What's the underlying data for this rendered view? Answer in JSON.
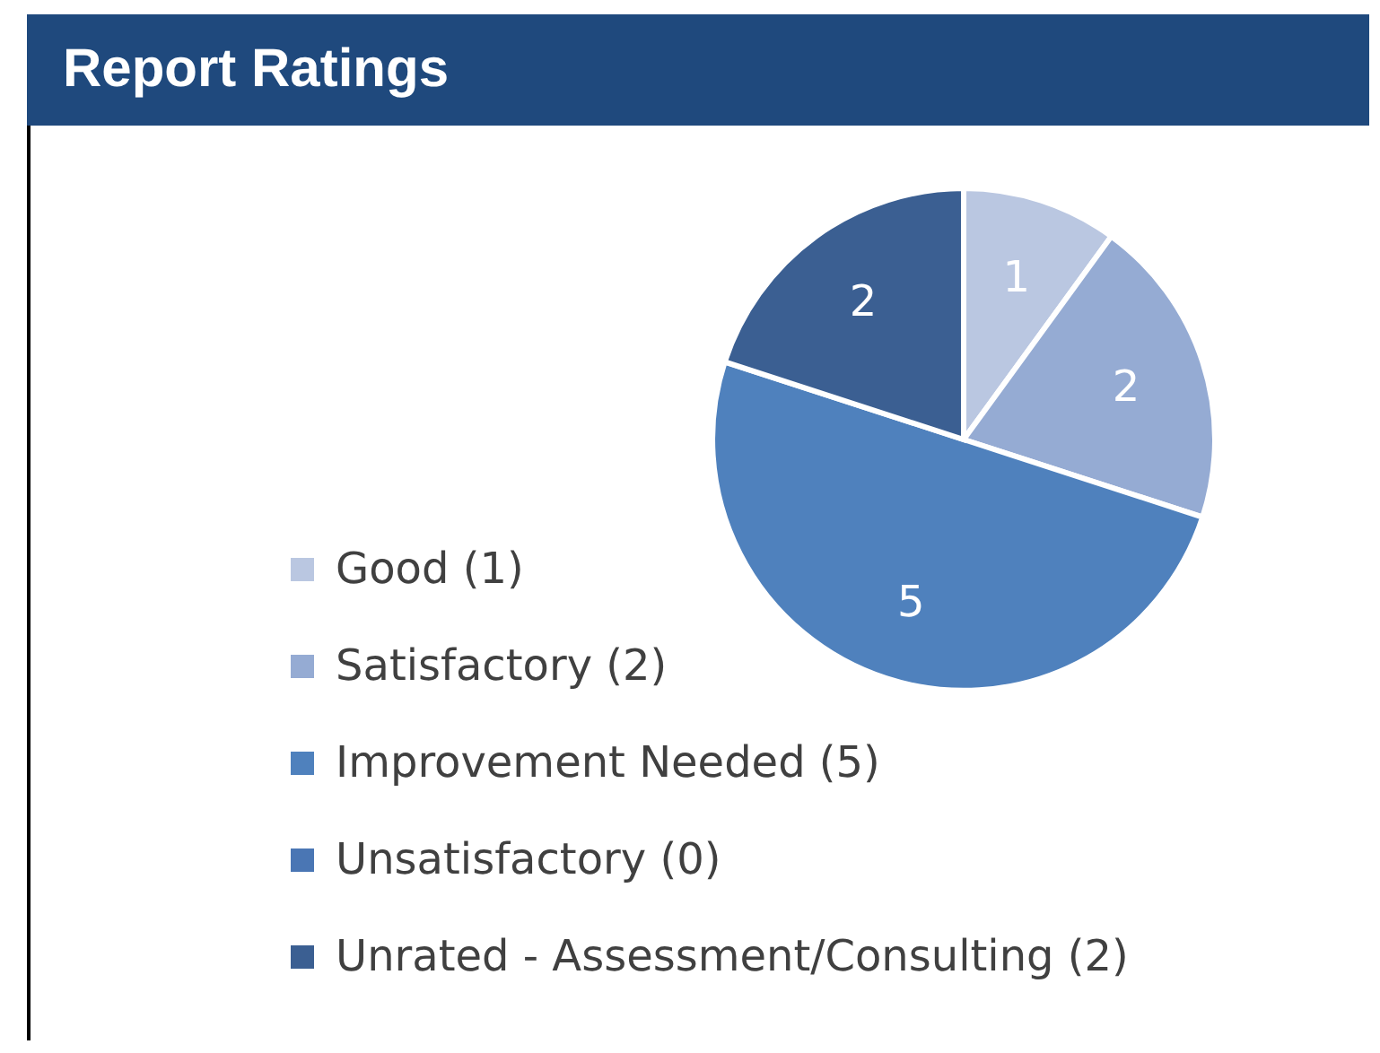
{
  "chart_data": {
    "type": "pie",
    "title": "Report Ratings",
    "categories": [
      "Good (1)",
      "Satisfactory (2)",
      "Improvement Needed (5)",
      "Unsatisfactory (0)",
      "Unrated - Assessment/Consulting (2)"
    ],
    "values": [
      1,
      2,
      5,
      0,
      2
    ],
    "colors": [
      "#bac7e1",
      "#95abd3",
      "#4f81bd",
      "#4a76b4",
      "#3b5f92"
    ],
    "value_labels": [
      "1",
      "2",
      "5",
      null,
      "2"
    ],
    "legend": "bottom left"
  }
}
